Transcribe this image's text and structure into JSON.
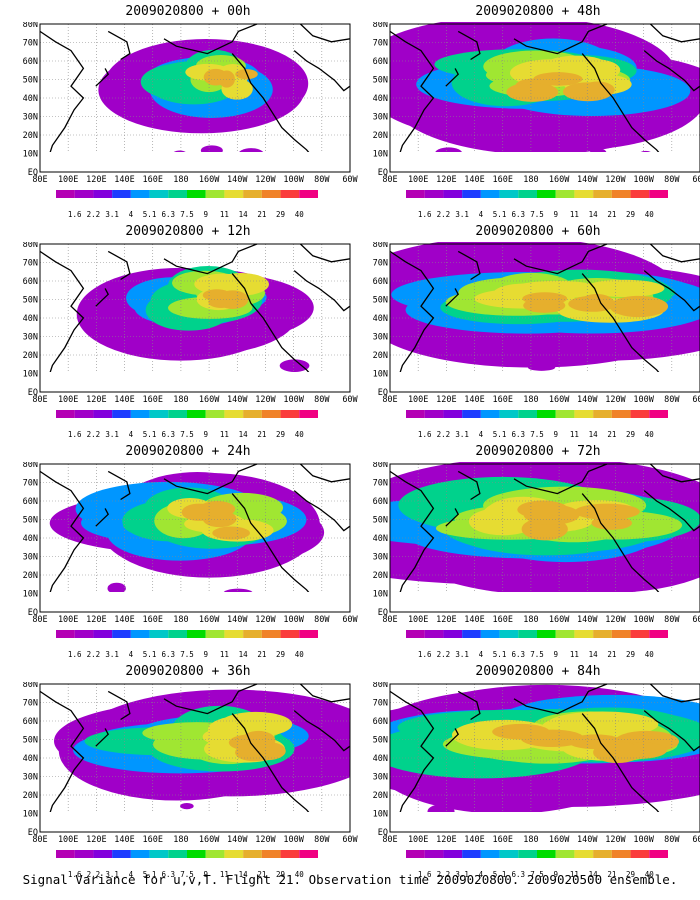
{
  "caption": "Signal Variance for u,v,T. Flight 21. Observation time 2009020800. 2009020500 ensemble.",
  "panels": [
    {
      "title": "2009020800 + 00h",
      "lead_hours": 0
    },
    {
      "title": "2009020800 + 48h",
      "lead_hours": 48
    },
    {
      "title": "2009020800 + 12h",
      "lead_hours": 12
    },
    {
      "title": "2009020800 + 60h",
      "lead_hours": 60
    },
    {
      "title": "2009020800 + 24h",
      "lead_hours": 24
    },
    {
      "title": "2009020800 + 72h",
      "lead_hours": 72
    },
    {
      "title": "2009020800 + 36h",
      "lead_hours": 36
    },
    {
      "title": "2009020800 + 84h",
      "lead_hours": 84
    }
  ],
  "map_axes": {
    "lon_labels": [
      "80E",
      "100E",
      "120E",
      "140E",
      "160E",
      "180",
      "160W",
      "140W",
      "120W",
      "100W",
      "80W",
      "60W"
    ],
    "lat_labels": [
      "80N",
      "70N",
      "60N",
      "50N",
      "40N",
      "30N",
      "20N",
      "10N",
      "EQ"
    ]
  },
  "colorbar": {
    "levels": [
      "1.6",
      "2.2",
      "3.1",
      "4",
      "5.1",
      "6.3",
      "7.5",
      "9",
      "11",
      "14",
      "21",
      "29",
      "40"
    ],
    "colors": [
      "#a000c8",
      "#8200dc",
      "#1e3cff",
      "#0096ff",
      "#00c8c8",
      "#00d28c",
      "#00dc00",
      "#a0e632",
      "#e6dc32",
      "#e6af2d",
      "#f08228",
      "#fa3c3c",
      "#f00082"
    ]
  }
}
